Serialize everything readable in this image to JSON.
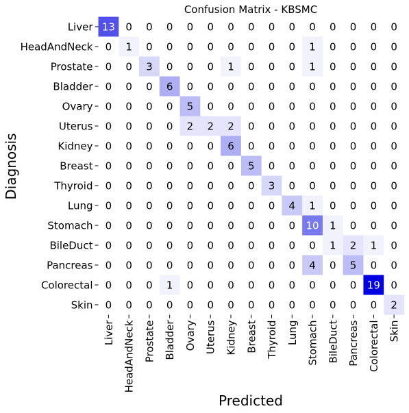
{
  "chart_data": {
    "type": "heatmap",
    "title": "Confusion Matrix - KBSMC",
    "xlabel": "Predicted",
    "ylabel": "Diagnosis",
    "row_labels": [
      "Liver",
      "HeadAndNeck",
      "Prostate",
      "Bladder",
      "Ovary",
      "Uterus",
      "Kidney",
      "Breast",
      "Thyroid",
      "Lung",
      "Stomach",
      "BileDuct",
      "Pancreas",
      "Colorectal",
      "Skin"
    ],
    "col_labels": [
      "Liver",
      "HeadAndNeck",
      "Prostate",
      "Bladder",
      "Ovary",
      "Uterus",
      "Kidney",
      "Breast",
      "Thyroid",
      "Lung",
      "Stomach",
      "BileDuct",
      "Pancreas",
      "Colorectal",
      "Skin"
    ],
    "matrix": [
      [
        13,
        0,
        0,
        0,
        0,
        0,
        0,
        0,
        0,
        0,
        0,
        0,
        0,
        0,
        0
      ],
      [
        0,
        1,
        0,
        0,
        0,
        0,
        0,
        0,
        0,
        0,
        1,
        0,
        0,
        0,
        0
      ],
      [
        0,
        0,
        3,
        0,
        0,
        0,
        1,
        0,
        0,
        0,
        1,
        0,
        0,
        0,
        0
      ],
      [
        0,
        0,
        0,
        6,
        0,
        0,
        0,
        0,
        0,
        0,
        0,
        0,
        0,
        0,
        0
      ],
      [
        0,
        0,
        0,
        0,
        5,
        0,
        0,
        0,
        0,
        0,
        0,
        0,
        0,
        0,
        0
      ],
      [
        0,
        0,
        0,
        0,
        2,
        2,
        2,
        0,
        0,
        0,
        0,
        0,
        0,
        0,
        0
      ],
      [
        0,
        0,
        0,
        0,
        0,
        0,
        6,
        0,
        0,
        0,
        0,
        0,
        0,
        0,
        0
      ],
      [
        0,
        0,
        0,
        0,
        0,
        0,
        0,
        5,
        0,
        0,
        0,
        0,
        0,
        0,
        0
      ],
      [
        0,
        0,
        0,
        0,
        0,
        0,
        0,
        0,
        3,
        0,
        0,
        0,
        0,
        0,
        0
      ],
      [
        0,
        0,
        0,
        0,
        0,
        0,
        0,
        0,
        0,
        4,
        1,
        0,
        0,
        0,
        0
      ],
      [
        0,
        0,
        0,
        0,
        0,
        0,
        0,
        0,
        0,
        0,
        10,
        1,
        0,
        0,
        0
      ],
      [
        0,
        0,
        0,
        0,
        0,
        0,
        0,
        0,
        0,
        0,
        0,
        1,
        2,
        1,
        0
      ],
      [
        0,
        0,
        0,
        0,
        0,
        0,
        0,
        0,
        0,
        0,
        4,
        0,
        5,
        0,
        0
      ],
      [
        0,
        0,
        0,
        1,
        0,
        0,
        0,
        0,
        0,
        0,
        0,
        0,
        0,
        19,
        0
      ],
      [
        0,
        0,
        0,
        0,
        0,
        0,
        0,
        0,
        0,
        0,
        0,
        0,
        0,
        0,
        2
      ]
    ],
    "colormap": {
      "low": "#ffffff",
      "high": "#0000e0"
    },
    "colorbar": false,
    "grid": false,
    "legend": "none"
  }
}
